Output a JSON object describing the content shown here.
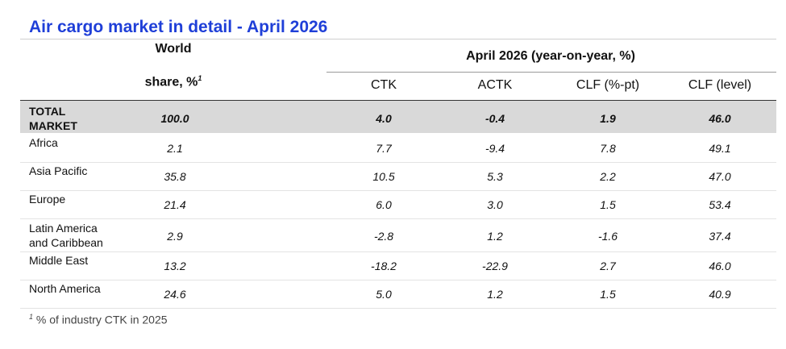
{
  "title": "Air cargo market in detail - April 2026",
  "header": {
    "world_line1": "World",
    "world_line2": "share, %",
    "world_sup": "1",
    "group_label": "April 2026 (year-on-year, %)",
    "columns": [
      "CTK",
      "ACTK",
      "CLF (%-pt)",
      "CLF (level)"
    ]
  },
  "rows": [
    {
      "region_line1": "TOTAL",
      "region_line2": "MARKET",
      "share": "100.0",
      "ctk": "4.0",
      "actk": "-0.4",
      "clf_pt": "1.9",
      "clf_level": "46.0"
    },
    {
      "region_line1": "Africa",
      "region_line2": "",
      "share": "2.1",
      "ctk": "7.7",
      "actk": "-9.4",
      "clf_pt": "7.8",
      "clf_level": "49.1"
    },
    {
      "region_line1": "Asia Pacific",
      "region_line2": "",
      "share": "35.8",
      "ctk": "10.5",
      "actk": "5.3",
      "clf_pt": "2.2",
      "clf_level": "47.0"
    },
    {
      "region_line1": "Europe",
      "region_line2": "",
      "share": "21.4",
      "ctk": "6.0",
      "actk": "3.0",
      "clf_pt": "1.5",
      "clf_level": "53.4"
    },
    {
      "region_line1": "Latin America",
      "region_line2": "and Caribbean",
      "share": "2.9",
      "ctk": "-2.8",
      "actk": "1.2",
      "clf_pt": "-1.6",
      "clf_level": "37.4"
    },
    {
      "region_line1": "Middle East",
      "region_line2": "",
      "share": "13.2",
      "ctk": "-18.2",
      "actk": "-22.9",
      "clf_pt": "2.7",
      "clf_level": "46.0"
    },
    {
      "region_line1": "North America",
      "region_line2": "",
      "share": "24.6",
      "ctk": "5.0",
      "actk": "1.2",
      "clf_pt": "1.5",
      "clf_level": "40.9"
    }
  ],
  "footnote_sup": "1",
  "footnote": " % of industry CTK in 2025",
  "colors": {
    "title": "#1f3fd8",
    "total_row_bg": "#d9d9d9"
  }
}
